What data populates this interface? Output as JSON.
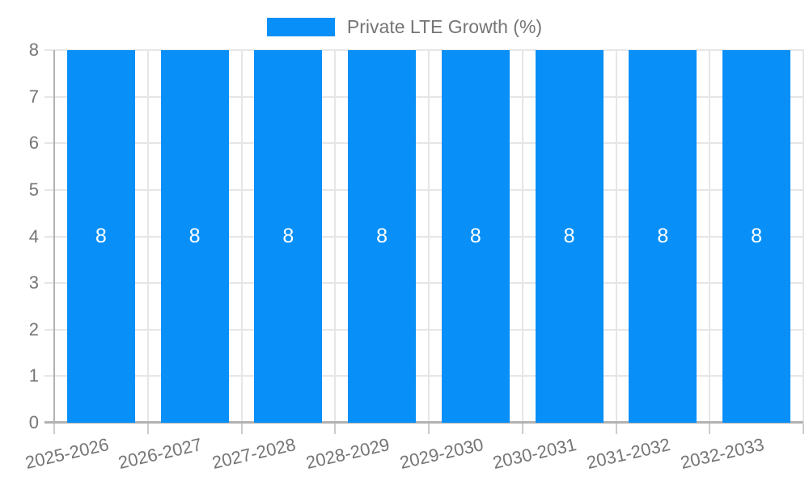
{
  "chart_data": {
    "type": "bar",
    "title": "",
    "xlabel": "",
    "ylabel": "",
    "legend": {
      "label": "Private LTE Growth (%)",
      "position": "top"
    },
    "categories": [
      "2025-2026",
      "2026-2027",
      "2027-2028",
      "2028-2029",
      "2029-2030",
      "2030-2031",
      "2031-2032",
      "2032-2033"
    ],
    "values": [
      8,
      8,
      8,
      8,
      8,
      8,
      8,
      8
    ],
    "bar_value_labels": [
      "8",
      "8",
      "8",
      "8",
      "8",
      "8",
      "8",
      "8"
    ],
    "ylim": [
      0,
      8
    ],
    "yticks": [
      0,
      1,
      2,
      3,
      4,
      5,
      6,
      7,
      8
    ],
    "grid": true,
    "colors": {
      "bar": "#0890f8",
      "grid": "#e6e6e6",
      "axis": "#b2b2b2",
      "tick": "#cccccc",
      "text": "#757575",
      "bar_label": "#ffffff",
      "background": "#ffffff"
    }
  }
}
